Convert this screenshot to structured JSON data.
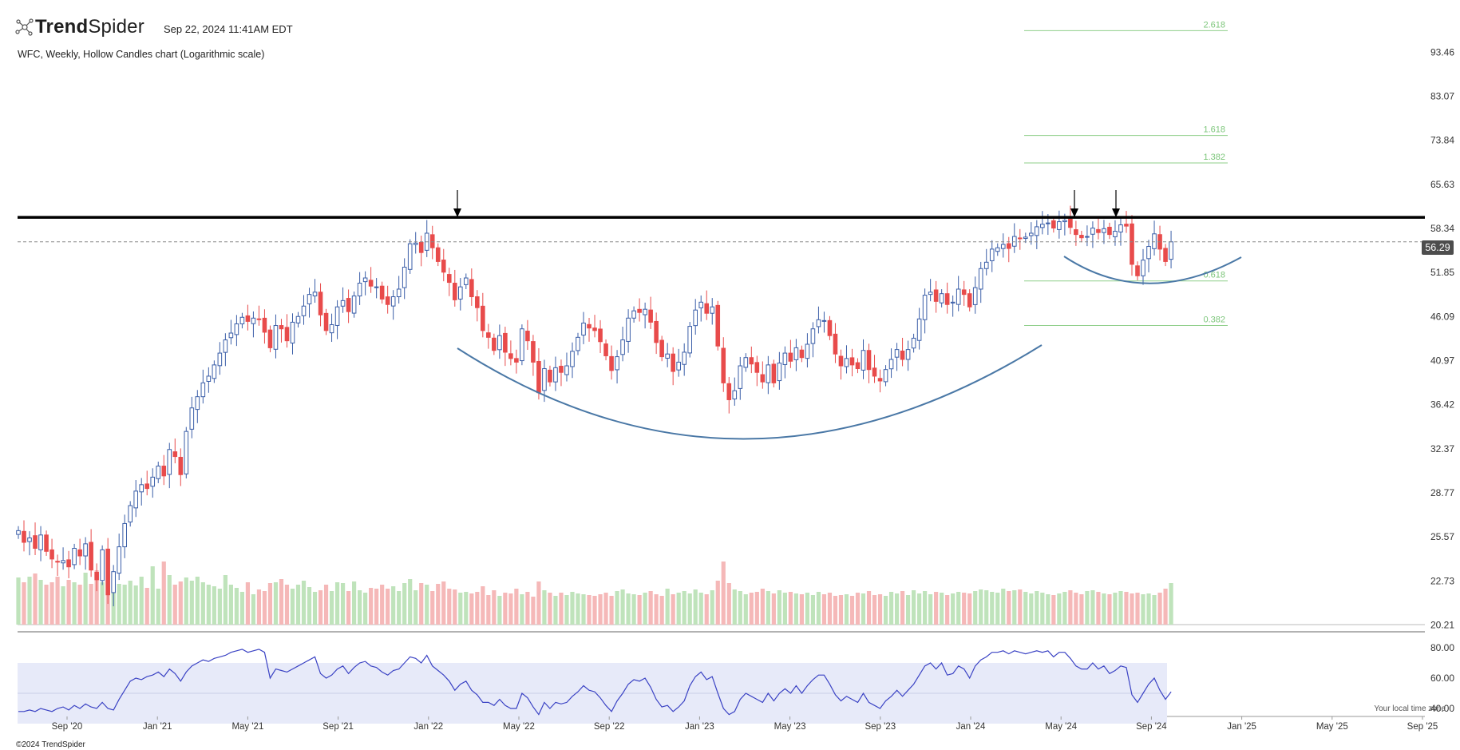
{
  "header": {
    "brand_light": "Trend",
    "brand_bold": "Spider",
    "brand_icon": "trendspider-logo-icon",
    "datetime": "Sep 22, 2024 11:41AM EDT",
    "subtitle": "WFC, Weekly, Hollow Candles chart (Logarithmic scale)"
  },
  "footer": {
    "copyright": "©2024 TrendSpider",
    "timezone": "Your local time zone"
  },
  "chart_data": {
    "type": "candlestick",
    "symbol": "WFC",
    "timeframe": "Weekly",
    "scale": "log",
    "last_price": 56.29,
    "last_price_label": "56.29",
    "price_ticks": [
      "93.46",
      "83.07",
      "73.84",
      "65.63",
      "58.34",
      "51.85",
      "46.09",
      "40.97",
      "36.42",
      "32.37",
      "28.77",
      "25.57",
      "22.73",
      "20.21"
    ],
    "rsi_ticks": [
      "80.00",
      "60.00",
      "40.00"
    ],
    "x_ticks": [
      "Sep '20",
      "Jan '21",
      "May '21",
      "Sep '21",
      "Jan '22",
      "May '22",
      "Sep '22",
      "Jan '23",
      "May '23",
      "Sep '23",
      "Jan '24",
      "May '24",
      "Sep '24",
      "Jan '25",
      "May '25",
      "Sep '25"
    ],
    "resistance_level": 60.1,
    "fib_levels": [
      {
        "ratio": 2.618,
        "label": "2.618",
        "price": 99.0
      },
      {
        "ratio": 1.618,
        "label": "1.618",
        "price": 74.8
      },
      {
        "ratio": 1.382,
        "label": "1.382",
        "price": 69.5
      },
      {
        "ratio": 0.618,
        "label": "0.618",
        "price": 50.7
      },
      {
        "ratio": 0.382,
        "label": "0.382",
        "price": 45.0
      }
    ],
    "closes": [
      26.0,
      25.2,
      25.5,
      24.8,
      25.7,
      24.6,
      24.1,
      23.9,
      24.0,
      23.6,
      24.8,
      24.3,
      25.1,
      23.4,
      22.8,
      24.7,
      21.9,
      23.3,
      24.9,
      26.5,
      27.8,
      28.9,
      29.4,
      29.1,
      30.0,
      30.9,
      30.1,
      32.3,
      31.7,
      30.2,
      33.9,
      36.1,
      37.2,
      38.6,
      39.3,
      40.5,
      41.8,
      43.3,
      44.1,
      45.2,
      46.0,
      45.5,
      45.9,
      45.8,
      44.2,
      42.4,
      45.0,
      44.6,
      43.2,
      45.4,
      46.1,
      47.4,
      48.9,
      49.2,
      46.3,
      44.4,
      45.1,
      47.3,
      48.1,
      46.7,
      48.7,
      50.4,
      51.1,
      50.0,
      49.9,
      48.3,
      47.6,
      48.6,
      49.6,
      52.6,
      56.0,
      56.1,
      54.7,
      57.6,
      55.4,
      53.4,
      51.9,
      50.5,
      48.2,
      49.9,
      51.1,
      48.6,
      47.2,
      44.4,
      43.6,
      42.1,
      43.8,
      41.9,
      41.2,
      40.8,
      44.6,
      43.2,
      40.8,
      37.6,
      40.1,
      38.7,
      40.2,
      39.7,
      40.4,
      42.0,
      43.6,
      45.3,
      44.7,
      44.4,
      43.1,
      41.5,
      39.9,
      41.4,
      43.3,
      45.9,
      46.8,
      46.6,
      47.0,
      45.4,
      43.0,
      41.4,
      41.7,
      39.8,
      40.8,
      41.9,
      44.9,
      46.9,
      47.9,
      46.5,
      47.3,
      42.6,
      38.6,
      36.9,
      37.8,
      40.4,
      41.3,
      40.6,
      39.7,
      38.7,
      40.5,
      38.6,
      40.7,
      41.8,
      40.9,
      42.4,
      41.3,
      42.8,
      44.6,
      45.7,
      45.6,
      43.8,
      41.7,
      40.4,
      41.2,
      40.5,
      40.1,
      42.1,
      40.0,
      39.3,
      38.8,
      40.0,
      41.1,
      42.2,
      41.1,
      42.2,
      43.5,
      45.8,
      48.8,
      49.2,
      48.0,
      49.0,
      47.6,
      47.9,
      49.6,
      48.9,
      47.3,
      49.8,
      52.4,
      53.3,
      55.2,
      55.4,
      55.9,
      55.3,
      57.1,
      56.8,
      57.0,
      57.6,
      58.6,
      59.0,
      59.2,
      58.4,
      59.4,
      59.6,
      58.5,
      57.4,
      56.9,
      57.1,
      58.4,
      57.7,
      58.3,
      57.4,
      57.9,
      58.9,
      58.7,
      53.0,
      51.4,
      53.6,
      55.6,
      57.5,
      55.2,
      53.4,
      56.29
    ],
    "volume_scale": [
      0.59,
      0.53,
      0.6,
      0.64,
      0.56,
      0.5,
      0.53,
      0.6,
      0.48,
      0.56,
      0.53,
      0.5,
      0.65,
      0.51,
      0.68,
      0.53,
      0.46,
      0.62,
      0.51,
      0.5,
      0.55,
      0.49,
      0.6,
      0.46,
      0.73,
      0.45,
      0.79,
      0.62,
      0.5,
      0.54,
      0.59,
      0.55,
      0.6,
      0.53,
      0.5,
      0.48,
      0.45,
      0.62,
      0.5,
      0.46,
      0.41,
      0.53,
      0.38,
      0.44,
      0.42,
      0.52,
      0.53,
      0.57,
      0.5,
      0.45,
      0.5,
      0.55,
      0.47,
      0.41,
      0.43,
      0.5,
      0.42,
      0.53,
      0.52,
      0.42,
      0.54,
      0.43,
      0.4,
      0.46,
      0.45,
      0.5,
      0.45,
      0.48,
      0.42,
      0.52,
      0.57,
      0.43,
      0.52,
      0.5,
      0.42,
      0.51,
      0.54,
      0.45,
      0.44,
      0.4,
      0.41,
      0.39,
      0.41,
      0.48,
      0.37,
      0.43,
      0.36,
      0.4,
      0.39,
      0.45,
      0.38,
      0.41,
      0.35,
      0.54,
      0.43,
      0.4,
      0.36,
      0.4,
      0.37,
      0.41,
      0.39,
      0.38,
      0.37,
      0.36,
      0.38,
      0.4,
      0.36,
      0.42,
      0.44,
      0.39,
      0.38,
      0.37,
      0.4,
      0.42,
      0.38,
      0.36,
      0.45,
      0.38,
      0.4,
      0.42,
      0.39,
      0.44,
      0.4,
      0.38,
      0.43,
      0.55,
      0.79,
      0.52,
      0.44,
      0.42,
      0.38,
      0.4,
      0.41,
      0.45,
      0.42,
      0.39,
      0.43,
      0.4,
      0.41,
      0.39,
      0.38,
      0.4,
      0.37,
      0.41,
      0.38,
      0.4,
      0.36,
      0.37,
      0.38,
      0.36,
      0.4,
      0.39,
      0.42,
      0.37,
      0.38,
      0.36,
      0.41,
      0.39,
      0.42,
      0.37,
      0.43,
      0.39,
      0.42,
      0.38,
      0.41,
      0.4,
      0.37,
      0.39,
      0.41,
      0.4,
      0.39,
      0.42,
      0.44,
      0.43,
      0.41,
      0.4,
      0.45,
      0.42,
      0.43,
      0.44,
      0.41,
      0.39,
      0.42,
      0.4,
      0.38,
      0.37,
      0.39,
      0.41,
      0.43,
      0.4,
      0.38,
      0.42,
      0.43,
      0.41,
      0.39,
      0.38,
      0.4,
      0.42,
      0.41,
      0.39,
      0.4,
      0.38,
      0.39,
      0.37,
      0.4,
      0.45,
      0.52
    ],
    "rsi": [
      38,
      38,
      39,
      38,
      40,
      39,
      38,
      40,
      41,
      39,
      42,
      40,
      43,
      41,
      40,
      44,
      40,
      39,
      46,
      52,
      58,
      60,
      59,
      61,
      62,
      64,
      61,
      66,
      63,
      58,
      64,
      68,
      70,
      72,
      71,
      73,
      74,
      75,
      77,
      78,
      79,
      77,
      78,
      79,
      77,
      60,
      66,
      65,
      64,
      66,
      68,
      70,
      72,
      74,
      63,
      60,
      62,
      66,
      68,
      63,
      67,
      70,
      71,
      68,
      67,
      64,
      62,
      65,
      66,
      70,
      74,
      73,
      70,
      75,
      68,
      65,
      62,
      58,
      52,
      56,
      58,
      52,
      49,
      44,
      44,
      42,
      46,
      42,
      40,
      40,
      50,
      47,
      41,
      36,
      44,
      40,
      44,
      43,
      44,
      48,
      51,
      55,
      52,
      51,
      47,
      42,
      38,
      45,
      50,
      56,
      59,
      58,
      60,
      54,
      46,
      41,
      42,
      38,
      41,
      45,
      55,
      61,
      64,
      59,
      61,
      50,
      40,
      36,
      38,
      46,
      50,
      48,
      46,
      44,
      50,
      45,
      50,
      53,
      50,
      55,
      50,
      55,
      59,
      62,
      62,
      56,
      49,
      45,
      48,
      46,
      44,
      50,
      44,
      42,
      40,
      45,
      48,
      52,
      48,
      52,
      56,
      62,
      68,
      70,
      66,
      70,
      62,
      63,
      68,
      66,
      60,
      68,
      72,
      74,
      77,
      77,
      78,
      76,
      78,
      77,
      76,
      77,
      78,
      77,
      78,
      74,
      77,
      77,
      73,
      68,
      66,
      66,
      70,
      66,
      68,
      63,
      65,
      68,
      67,
      49,
      44,
      50,
      56,
      60,
      52,
      46,
      51
    ]
  }
}
